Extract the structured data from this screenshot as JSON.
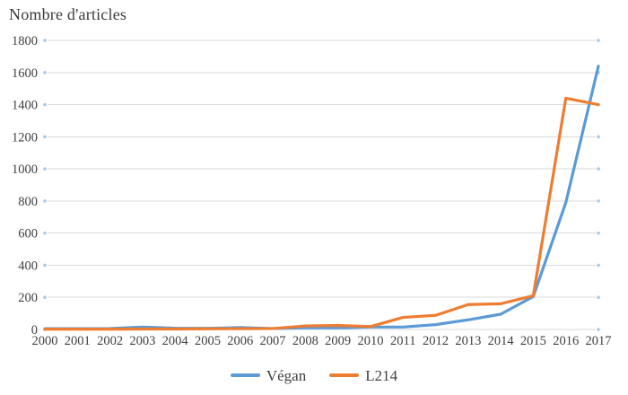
{
  "chart_data": {
    "type": "line",
    "title": "Nombre d'articles",
    "xlabel": "",
    "ylabel": "Nombre d'articles",
    "categories": [
      2000,
      2001,
      2002,
      2003,
      2004,
      2005,
      2006,
      2007,
      2008,
      2009,
      2010,
      2011,
      2012,
      2013,
      2014,
      2015,
      2016,
      2017
    ],
    "series": [
      {
        "name": "Végan",
        "color": "#5B9BD5",
        "values": [
          5,
          5,
          6,
          15,
          8,
          7,
          12,
          6,
          10,
          10,
          15,
          15,
          30,
          60,
          95,
          205,
          790,
          1640
        ]
      },
      {
        "name": "L214",
        "color": "#ED7D31",
        "values": [
          2,
          2,
          2,
          3,
          3,
          4,
          5,
          6,
          22,
          25,
          18,
          75,
          88,
          155,
          160,
          210,
          1440,
          1400
        ]
      }
    ],
    "ylim": [
      0,
      1800
    ],
    "y_ticks": [
      0,
      200,
      400,
      600,
      800,
      1000,
      1200,
      1400,
      1600,
      1800
    ],
    "grid": true,
    "legend_position": "bottom",
    "colors": {
      "grid_line": "#D9D9D9",
      "grid_end_dot": "#9DC3E6",
      "tick_text": "#404040",
      "title_text": "#3a3a3a"
    }
  }
}
